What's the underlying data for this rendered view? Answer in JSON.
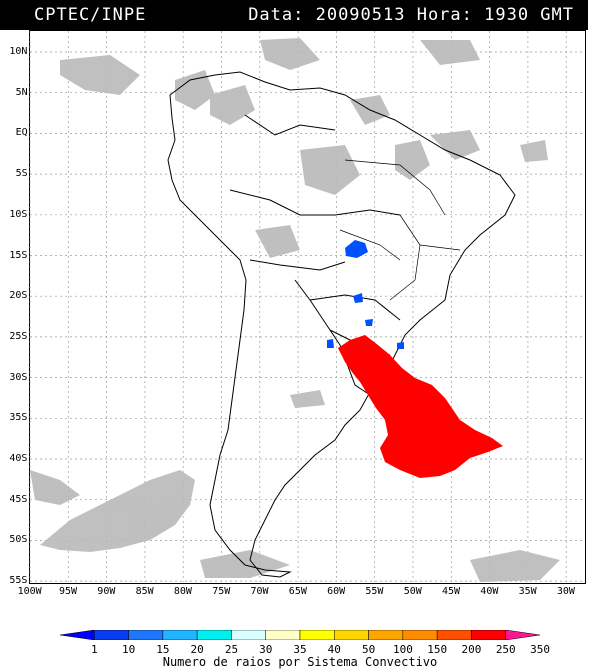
{
  "header": {
    "source": "CPTEC/INPE",
    "datetime": "Data: 20090513 Hora: 1930 GMT"
  },
  "lat_labels": [
    "10N",
    "5N",
    "EQ",
    "5S",
    "10S",
    "15S",
    "20S",
    "25S",
    "30S",
    "35S",
    "40S",
    "45S",
    "50S",
    "55S"
  ],
  "lon_labels": [
    "100W",
    "95W",
    "90W",
    "85W",
    "80W",
    "75W",
    "70W",
    "65W",
    "60W",
    "55W",
    "50W",
    "45W",
    "40W",
    "35W",
    "30W"
  ],
  "colorbar": {
    "labels": [
      "1",
      "10",
      "15",
      "20",
      "25",
      "30",
      "35",
      "40",
      "50",
      "100",
      "150",
      "200",
      "250",
      "350"
    ],
    "colors": [
      "#0000ff",
      "#0a3cf0",
      "#1e78ff",
      "#1eb4ff",
      "#00f0f0",
      "#d7ffff",
      "#ffffc8",
      "#ffff00",
      "#ffd700",
      "#ffa500",
      "#ff8c00",
      "#ff5000",
      "#ff0000",
      "#ff1493"
    ],
    "caption": "Numero de raios por Sistema Convectivo"
  },
  "colors": {
    "cloud": "#b4b4b4",
    "high_activity": "#ff0000",
    "low_activity": "#0050ff",
    "grid": "#9a9a9a"
  }
}
